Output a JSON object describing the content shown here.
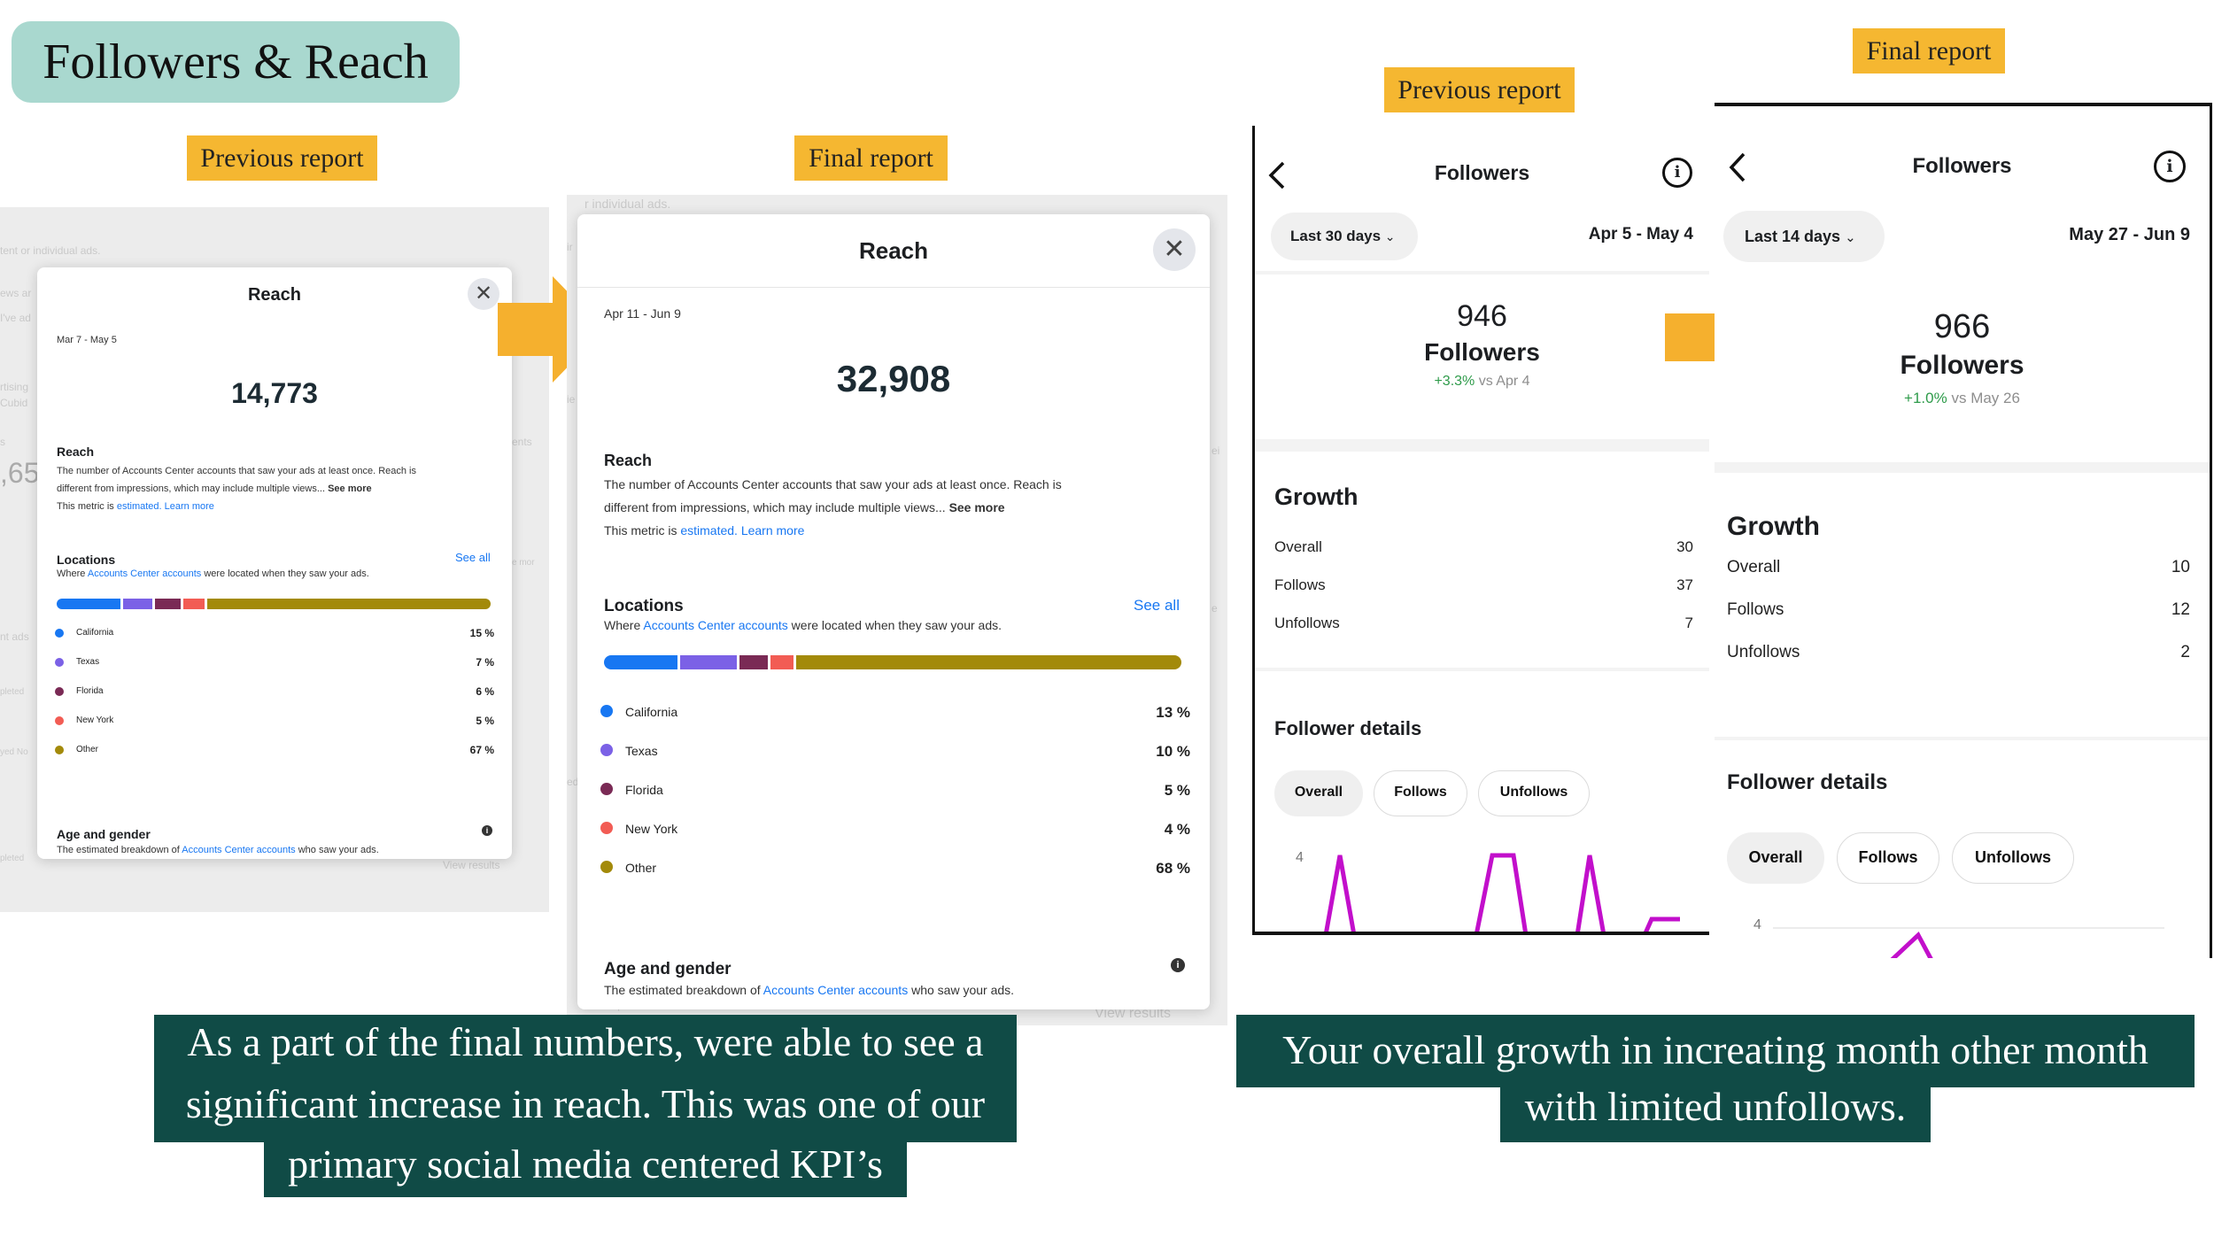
{
  "slide": {
    "title": "Followers & Reach",
    "tags": {
      "reach_previous": "Previous report",
      "reach_final": "Final report",
      "followers_previous": "Previous report",
      "followers_final": "Final report"
    },
    "caption_left_lines": [
      "As a part of the final numbers, were able to see a",
      "significant increase in reach. This was one of our",
      "primary social media centered KPI’s"
    ],
    "caption_right_lines": [
      "Your overall growth in increating month other month",
      "with limited unfollows."
    ],
    "colors": {
      "title_bg": "#a9d8cf",
      "tag_bg": "#f5b731",
      "caption_bg": "#104b46",
      "arrow": "#f5b02e"
    }
  },
  "reach_previous": {
    "bg_fragments": [
      "tent or individual ads.",
      "ews ar",
      "I've ad",
      "rtising",
      "Cubid",
      "s",
      ",65",
      "ents",
      "nt ads",
      "pleted",
      "yed No",
      "pleted",
      "View results",
      "e mor"
    ],
    "title": "Reach",
    "close_icon": "close-icon",
    "date_range": "Mar 7 - May 5",
    "value": "14,773",
    "reach_heading": "Reach",
    "reach_desc_1": "The number of Accounts Center accounts that saw your ads at least once. Reach is",
    "reach_desc_2": "different from impressions, which may include multiple views...",
    "see_more": "See more",
    "metric_prefix": "This metric is",
    "estimated": "estimated.",
    "learn_more": "Learn more",
    "locations_heading": "Locations",
    "see_all": "See all",
    "loc_desc_prefix": "Where",
    "loc_desc_link": "Accounts Center accounts",
    "loc_desc_suffix": "were located when they saw your ads.",
    "locations": [
      {
        "name": "California",
        "pct": "15 %",
        "share": 15,
        "color": "#1877f2"
      },
      {
        "name": "Texas",
        "pct": "7 %",
        "share": 7,
        "color": "#7b61e6"
      },
      {
        "name": "Florida",
        "pct": "6 %",
        "share": 6,
        "color": "#7a2a55"
      },
      {
        "name": "New York",
        "pct": "5 %",
        "share": 5,
        "color": "#f25c54"
      },
      {
        "name": "Other",
        "pct": "67 %",
        "share": 67,
        "color": "#a38a0a"
      }
    ],
    "age_heading": "Age and gender",
    "age_desc_prefix": "The estimated breakdown of",
    "age_desc_link": "Accounts Center accounts",
    "age_desc_suffix": "who saw your ads.",
    "info_icon": "info-icon"
  },
  "reach_final": {
    "bg_fragments": [
      "r individual ads.",
      "ir",
      "ie",
      "ei",
      "e",
      "ed",
      "View results",
      "Apr 22"
    ],
    "title": "Reach",
    "date_range": "Apr 11 - Jun 9",
    "value": "32,908",
    "reach_heading": "Reach",
    "reach_desc_1": "The number of Accounts Center accounts that saw your ads at least once. Reach is",
    "reach_desc_2": "different from impressions, which may include multiple views...",
    "see_more": "See more",
    "metric_prefix": "This metric is",
    "estimated": "estimated.",
    "learn_more": "Learn more",
    "locations_heading": "Locations",
    "see_all": "See all",
    "loc_desc_prefix": "Where",
    "loc_desc_link": "Accounts Center accounts",
    "loc_desc_suffix": "were located when they saw your ads.",
    "locations": [
      {
        "name": "California",
        "pct": "13 %",
        "share": 13,
        "color": "#1877f2"
      },
      {
        "name": "Texas",
        "pct": "10 %",
        "share": 10,
        "color": "#7b61e6"
      },
      {
        "name": "Florida",
        "pct": "5 %",
        "share": 5,
        "color": "#7a2a55"
      },
      {
        "name": "New York",
        "pct": "4 %",
        "share": 4,
        "color": "#f25c54"
      },
      {
        "name": "Other",
        "pct": "68 %",
        "share": 68,
        "color": "#a38a0a"
      }
    ],
    "age_heading": "Age and gender",
    "age_desc_prefix": "The estimated breakdown of",
    "age_desc_link": "Accounts Center accounts",
    "age_desc_suffix": "who saw your ads."
  },
  "followers_previous": {
    "title": "Followers",
    "back_icon": "chevron-left-icon",
    "info_icon": "info-icon",
    "range_dropdown": "Last 30 days",
    "date_range": "Apr 5 - May 4",
    "count": "946",
    "count_label": "Followers",
    "change": "+3.3%",
    "change_vs": "vs Apr 4",
    "growth_heading": "Growth",
    "growth": [
      {
        "label": "Overall",
        "value": "30"
      },
      {
        "label": "Follows",
        "value": "37"
      },
      {
        "label": "Unfollows",
        "value": "7"
      }
    ],
    "details_heading": "Follower details",
    "tabs": [
      "Overall",
      "Follows",
      "Unfollows"
    ],
    "chart_tick": "4",
    "chart_color": "#c20fcb"
  },
  "followers_final": {
    "title": "Followers",
    "range_dropdown": "Last 14 days",
    "date_range": "May 27 - Jun 9",
    "count": "966",
    "count_label": "Followers",
    "change": "+1.0%",
    "change_vs": "vs May 26",
    "growth_heading": "Growth",
    "growth": [
      {
        "label": "Overall",
        "value": "10"
      },
      {
        "label": "Follows",
        "value": "12"
      },
      {
        "label": "Unfollows",
        "value": "2"
      }
    ],
    "details_heading": "Follower details",
    "tabs": [
      "Overall",
      "Follows",
      "Unfollows"
    ],
    "chart_tick": "4"
  }
}
